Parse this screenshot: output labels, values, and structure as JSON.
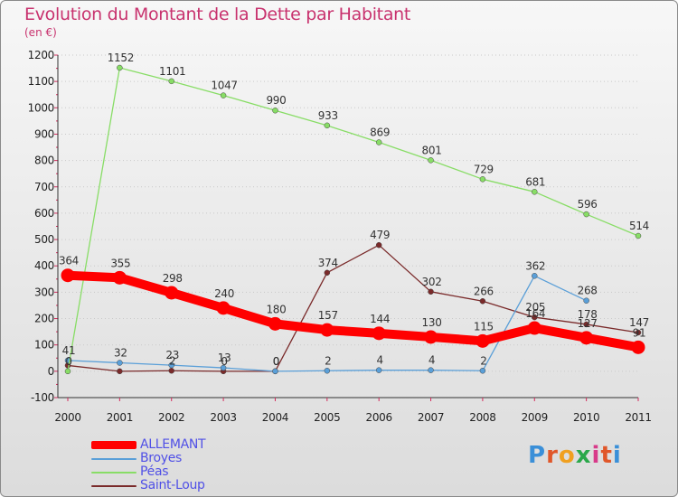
{
  "title": "Evolution du Montant de la Dette par Habitant",
  "unit": "(en €)",
  "logo": "Proxiti",
  "chart_data": {
    "type": "line",
    "title": "Evolution du Montant de la Dette par Habitant",
    "ylabel": "(en €)",
    "x": [
      "2000",
      "2001",
      "2002",
      "2003",
      "2004",
      "2005",
      "2006",
      "2007",
      "2008",
      "2009",
      "2010",
      "2011"
    ],
    "ylim": [
      -100,
      1200
    ],
    "yticks": [
      -100,
      0,
      100,
      200,
      300,
      400,
      500,
      600,
      700,
      800,
      900,
      1000,
      1100,
      1200
    ],
    "grid": "horizontal dotted",
    "legend": "bottom-left",
    "series": [
      {
        "name": "ALLEMANT",
        "color": "#ff0000",
        "values": [
          364,
          355,
          298,
          240,
          180,
          157,
          144,
          130,
          115,
          164,
          127,
          91
        ],
        "labels": [
          "364",
          "355",
          "298",
          "240",
          "180",
          "157",
          "144",
          "130",
          "115",
          "164",
          "127",
          "91"
        ]
      },
      {
        "name": "Broyes",
        "color": "#5a9fd8",
        "values": [
          41,
          32,
          23,
          13,
          0,
          2,
          4,
          4,
          2,
          362,
          268,
          null
        ],
        "labels": [
          "41",
          "32",
          "23",
          "13",
          "0",
          "2",
          "4",
          "4",
          "2",
          "362",
          "268",
          ""
        ]
      },
      {
        "name": "Péas",
        "color": "#88dd66",
        "values": [
          0,
          1152,
          1101,
          1047,
          990,
          933,
          869,
          801,
          729,
          681,
          596,
          514
        ],
        "labels": [
          "0",
          "1152",
          "1101",
          "1047",
          "990",
          "933",
          "869",
          "801",
          "729",
          "681",
          "596",
          "514"
        ]
      },
      {
        "name": "Saint-Loup",
        "color": "#7a2a2a",
        "values": [
          22,
          0,
          2,
          0,
          0,
          374,
          479,
          302,
          266,
          205,
          178,
          147
        ],
        "labels": [
          "",
          "",
          "2",
          "0",
          "0",
          "374",
          "479",
          "302",
          "266",
          "205",
          "178",
          "147"
        ]
      }
    ]
  }
}
